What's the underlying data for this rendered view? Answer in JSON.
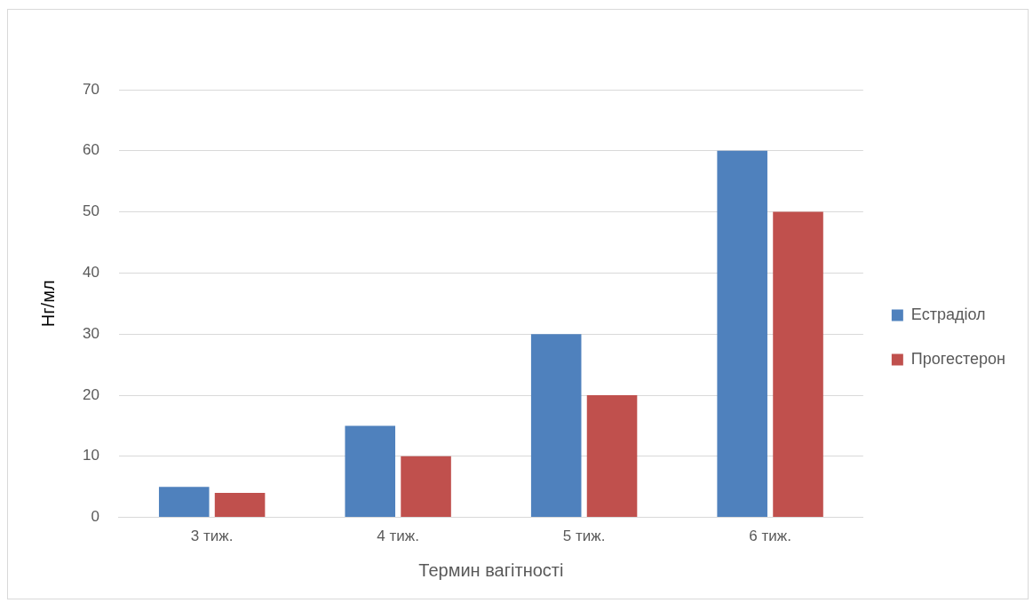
{
  "chart_data": {
    "type": "bar",
    "xlabel": "Термин вагітності",
    "ylabel": "Нг/мл",
    "categories": [
      "3 тиж.",
      "4 тиж.",
      "5 тиж.",
      "6 тиж."
    ],
    "series": [
      {
        "name": "Естрадіол",
        "color": "#4f81bd",
        "values": [
          5,
          15,
          30,
          60
        ]
      },
      {
        "name": "Прогестерон",
        "color": "#c0504d",
        "values": [
          4,
          10,
          20,
          50
        ]
      }
    ],
    "ylim": [
      0,
      70
    ],
    "yticks": [
      0,
      10,
      20,
      30,
      40,
      50,
      60,
      70
    ],
    "grid": "y",
    "legend": "right"
  }
}
